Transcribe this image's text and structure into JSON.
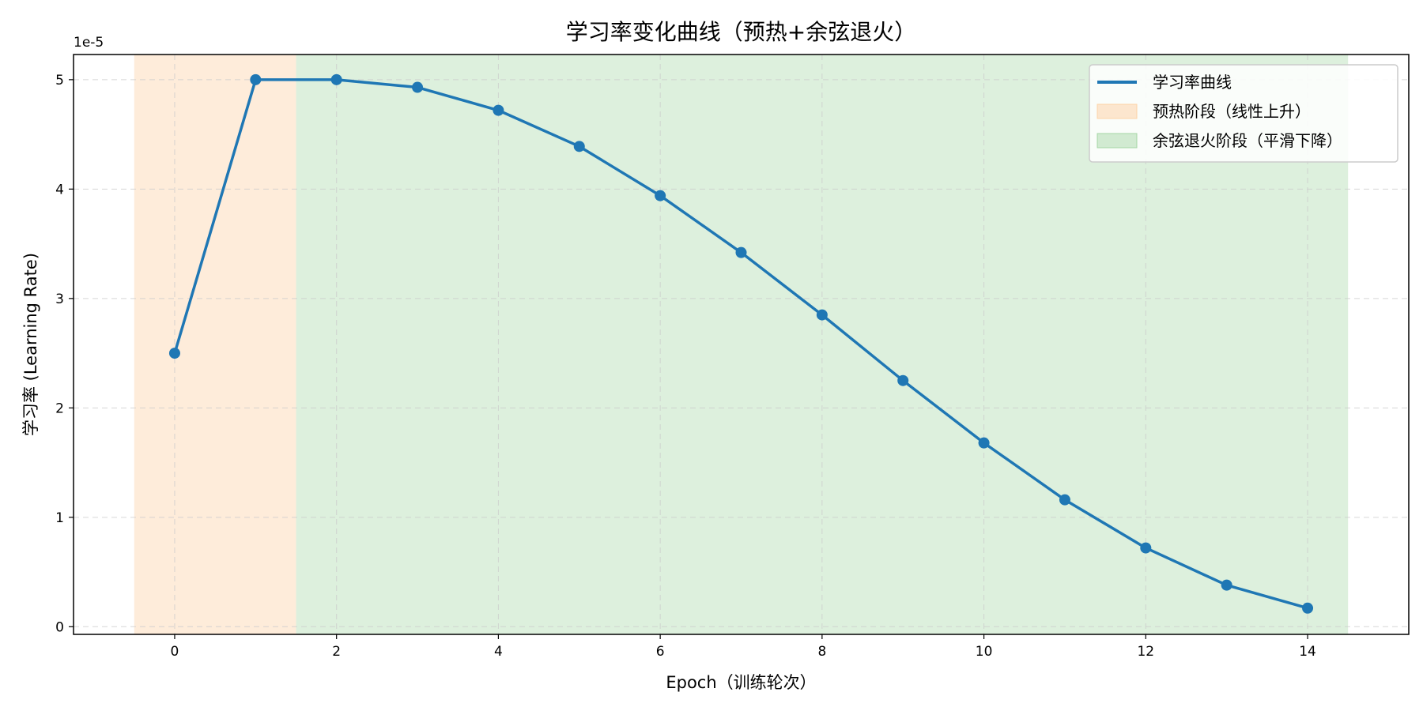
{
  "chart_data": {
    "type": "line",
    "title": "学习率变化曲线（预热+余弦退火）",
    "xlabel": "Epoch（训练轮次）",
    "ylabel": "学习率 (Learning Rate)",
    "y_offset_label": "1e-5",
    "xlim": [
      -1.25,
      15.25
    ],
    "ylim": [
      -0.07,
      5.23
    ],
    "xticks": [
      0,
      2,
      4,
      6,
      8,
      10,
      12,
      14
    ],
    "yticks": [
      0,
      1,
      2,
      3,
      4,
      5
    ],
    "grid": true,
    "legend_position": "top-right",
    "colors": {
      "line": "#1f77b4",
      "warmup_fill": "#fdd0a2",
      "cosine_fill": "#b5dfb5",
      "grid": "#cccccc"
    },
    "series": [
      {
        "name": "学习率曲线",
        "x": [
          0,
          1,
          2,
          3,
          4,
          5,
          6,
          7,
          8,
          9,
          10,
          11,
          12,
          13,
          14
        ],
        "values": [
          2.5,
          5.0,
          5.0,
          4.93,
          4.72,
          4.39,
          3.94,
          3.42,
          2.85,
          2.25,
          1.68,
          1.16,
          0.72,
          0.38,
          0.17
        ]
      }
    ],
    "regions": [
      {
        "name": "预热阶段（线性上升）",
        "x_start": -0.5,
        "x_end": 1.5,
        "color": "#fdd0a2",
        "opacity": 0.4
      },
      {
        "name": "余弦退火阶段（平滑下降）",
        "x_start": 1.5,
        "x_end": 14.5,
        "color": "#9fd39f",
        "opacity": 0.35
      }
    ]
  }
}
